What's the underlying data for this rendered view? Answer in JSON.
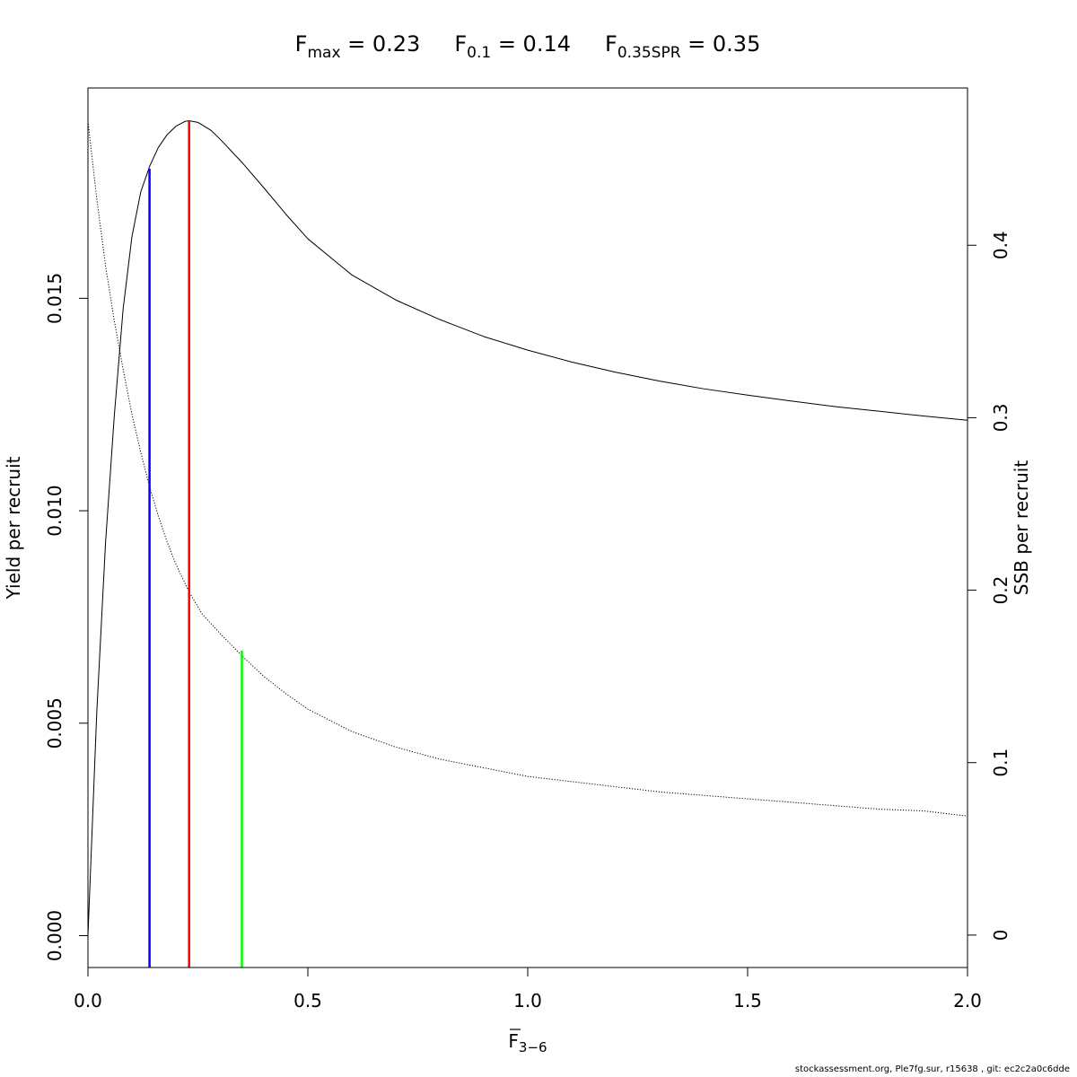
{
  "chart_data": {
    "type": "line",
    "title_parts": [
      {
        "main": "F",
        "sub": "max",
        "rest": " = 0.23"
      },
      {
        "main": "F",
        "sub": "0.1",
        "rest": " = 0.14"
      },
      {
        "main": "F",
        "sub": "0.35SPR",
        "rest": " = 0.35"
      }
    ],
    "xlabel": {
      "main": "F",
      "sub": "3−6"
    },
    "ylabel_left": "Yield per recruit",
    "ylabel_right": "SSB per recruit",
    "xlim": [
      0,
      2
    ],
    "ylim_left": [
      -0.00075,
      0.01995
    ],
    "ylim_right": [
      -0.0188,
      0.4912
    ],
    "x_ticks": [
      0.0,
      0.5,
      1.0,
      1.5,
      2.0
    ],
    "x_tick_labels": [
      "0.0",
      "0.5",
      "1.0",
      "1.5",
      "2.0"
    ],
    "y_left_ticks": [
      0.0,
      0.005,
      0.01,
      0.015
    ],
    "y_left_tick_labels": [
      "0.000",
      "0.005",
      "0.010",
      "0.015"
    ],
    "y_right_ticks": [
      0.0,
      0.1,
      0.2,
      0.3,
      0.4
    ],
    "y_right_tick_labels": [
      "0",
      "0.1",
      "0.2",
      "0.3",
      "0.4"
    ],
    "grid": false,
    "series": [
      {
        "axis": "left",
        "style": "solid",
        "color": "#000000",
        "x": [
          0,
          0.02,
          0.04,
          0.06,
          0.08,
          0.1,
          0.12,
          0.14,
          0.16,
          0.18,
          0.2,
          0.22,
          0.23,
          0.25,
          0.28,
          0.3,
          0.35,
          0.4,
          0.45,
          0.5,
          0.6,
          0.7,
          0.8,
          0.9,
          1.0,
          1.1,
          1.2,
          1.3,
          1.4,
          1.5,
          1.6,
          1.7,
          1.8,
          1.9,
          2.0
        ],
        "y": [
          0,
          0.00525,
          0.00925,
          0.01225,
          0.01475,
          0.01645,
          0.0175,
          0.0181,
          0.01855,
          0.01885,
          0.01905,
          0.01916,
          0.01918,
          0.01914,
          0.01895,
          0.01875,
          0.0182,
          0.0176,
          0.01698,
          0.0164,
          0.01555,
          0.01496,
          0.0145,
          0.0141,
          0.01378,
          0.0135,
          0.01326,
          0.01305,
          0.01287,
          0.01272,
          0.01258,
          0.01245,
          0.01234,
          0.01223,
          0.01213
        ]
      },
      {
        "axis": "right",
        "style": "dotted",
        "color": "#000000",
        "x": [
          0,
          0.02,
          0.04,
          0.06,
          0.08,
          0.1,
          0.12,
          0.14,
          0.16,
          0.18,
          0.2,
          0.23,
          0.26,
          0.3,
          0.35,
          0.4,
          0.45,
          0.5,
          0.6,
          0.7,
          0.8,
          0.9,
          1.0,
          1.1,
          1.2,
          1.3,
          1.4,
          1.5,
          1.6,
          1.7,
          1.8,
          1.9,
          2.0
        ],
        "y": [
          0.472,
          0.427,
          0.388,
          0.356,
          0.328,
          0.302,
          0.28,
          0.26,
          0.243,
          0.228,
          0.215,
          0.199,
          0.186,
          0.175,
          0.162,
          0.15,
          0.14,
          0.131,
          0.118,
          0.109,
          0.102,
          0.097,
          0.092,
          0.089,
          0.086,
          0.083,
          0.081,
          0.079,
          0.077,
          0.075,
          0.073,
          0.072,
          0.069
        ]
      }
    ],
    "reference_lines": [
      {
        "label": "F0.1",
        "x": 0.14,
        "axis": "left",
        "y_top": 0.01805,
        "color": "#0000ff"
      },
      {
        "label": "Fmax",
        "x": 0.23,
        "axis": "left",
        "y_top": 0.01918,
        "color": "#ff0000"
      },
      {
        "label": "F0.35SPR",
        "x": 0.35,
        "axis": "right",
        "y_top": 0.165,
        "color": "#00ff00"
      }
    ]
  },
  "footer": {
    "text": "stockassessment.org, Ple7fg.sur, r15638 , git: ec2c2a0c6dde"
  }
}
